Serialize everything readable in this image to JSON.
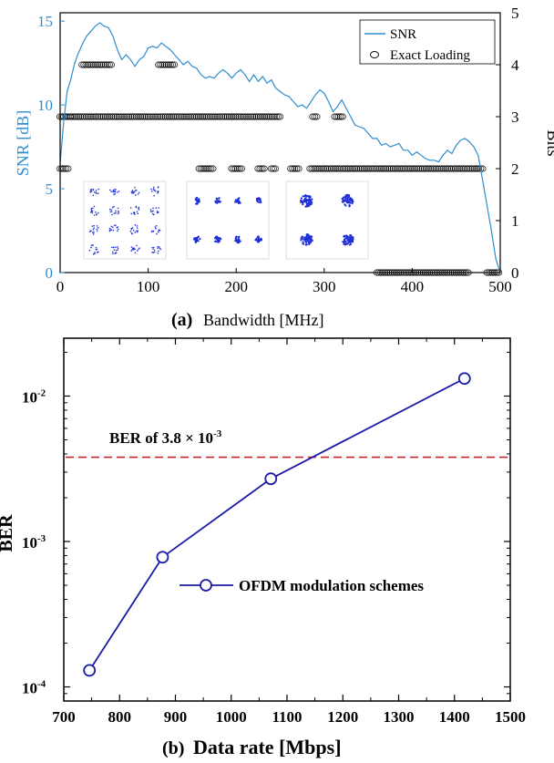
{
  "chart_data": [
    {
      "type": "line",
      "panel_label": "(a)",
      "xlabel": "Bandwidth [MHz]",
      "ylabel": "SNR [dB]",
      "y2label": "Bits",
      "xlim": [
        0,
        500
      ],
      "ylim": [
        0,
        15.5
      ],
      "y2lim": [
        0,
        5
      ],
      "x_ticks": [
        "0",
        "100",
        "200",
        "300",
        "400",
        "500"
      ],
      "y_ticks": [
        "0",
        "5",
        "10",
        "15"
      ],
      "y2_ticks": [
        "0",
        "1",
        "2",
        "3",
        "4",
        "5"
      ],
      "legend": {
        "position": "top-right",
        "entries": [
          "SNR",
          "Exact Loading"
        ]
      },
      "colors": {
        "snr": "#2e8ece",
        "loading": "#000000",
        "axis_left": "#2e8ece",
        "constellation": "#1f2fd6"
      },
      "series": [
        {
          "name": "SNR",
          "axis": "left",
          "x": [
            0,
            4,
            8,
            12,
            16,
            20,
            25,
            30,
            35,
            40,
            45,
            50,
            55,
            60,
            65,
            70,
            75,
            80,
            85,
            90,
            95,
            100,
            105,
            110,
            115,
            120,
            125,
            130,
            135,
            140,
            145,
            150,
            155,
            160,
            165,
            170,
            175,
            180,
            185,
            190,
            195,
            200,
            205,
            210,
            215,
            220,
            225,
            230,
            235,
            240,
            245,
            250,
            255,
            260,
            265,
            270,
            275,
            280,
            285,
            290,
            295,
            300,
            305,
            310,
            315,
            320,
            325,
            330,
            335,
            340,
            345,
            350,
            355,
            360,
            365,
            370,
            375,
            380,
            385,
            390,
            395,
            400,
            405,
            410,
            415,
            420,
            425,
            430,
            435,
            440,
            445,
            450,
            455,
            460,
            465,
            470,
            475,
            480,
            485,
            490,
            495,
            500
          ],
          "y": [
            6.5,
            9.0,
            10.8,
            11.5,
            12.4,
            13.0,
            13.6,
            14.1,
            14.4,
            14.7,
            14.9,
            14.7,
            14.6,
            14.1,
            13.3,
            12.7,
            13.0,
            12.7,
            12.3,
            12.7,
            12.9,
            13.4,
            13.5,
            13.4,
            13.7,
            13.5,
            13.3,
            13.0,
            12.7,
            12.4,
            12.6,
            12.3,
            12.2,
            11.8,
            11.6,
            11.7,
            11.6,
            11.9,
            12.1,
            11.9,
            11.6,
            11.9,
            12.1,
            11.8,
            11.4,
            11.8,
            11.4,
            11.7,
            11.3,
            11.5,
            11.0,
            10.8,
            10.6,
            10.5,
            10.2,
            9.9,
            10.0,
            9.8,
            10.2,
            10.6,
            10.9,
            10.7,
            10.2,
            9.6,
            9.9,
            10.3,
            9.8,
            9.3,
            8.8,
            8.7,
            8.6,
            8.3,
            8.0,
            8.0,
            7.6,
            7.7,
            7.5,
            7.6,
            7.7,
            7.3,
            7.3,
            7.0,
            7.2,
            7.0,
            6.8,
            6.7,
            6.7,
            6.6,
            7.0,
            7.3,
            7.1,
            7.6,
            7.9,
            8.0,
            7.8,
            7.5,
            7.0,
            5.5,
            4.0,
            2.5,
            0.8,
            0.0
          ]
        },
        {
          "name": "Exact Loading",
          "axis": "right",
          "segments": [
            {
              "bits": 2,
              "x_start": 0,
              "x_end": 10
            },
            {
              "bits": 3,
              "x_start": 0,
              "x_end": 12
            },
            {
              "bits": 3,
              "x_start": 12,
              "x_end": 250
            },
            {
              "bits": 4,
              "x_start": 25,
              "x_end": 60
            },
            {
              "bits": 4,
              "x_start": 112,
              "x_end": 130
            },
            {
              "bits": 2,
              "x_start": 158,
              "x_end": 175
            },
            {
              "bits": 2,
              "x_start": 195,
              "x_end": 207
            },
            {
              "bits": 2,
              "x_start": 225,
              "x_end": 232
            },
            {
              "bits": 2,
              "x_start": 240,
              "x_end": 246
            },
            {
              "bits": 2,
              "x_start": 262,
              "x_end": 272
            },
            {
              "bits": 3,
              "x_start": 287,
              "x_end": 293
            },
            {
              "bits": 3,
              "x_start": 312,
              "x_end": 322
            },
            {
              "bits": 2,
              "x_start": 284,
              "x_end": 480
            },
            {
              "bits": 0,
              "x_start": 360,
              "x_end": 465
            },
            {
              "bits": 0,
              "x_start": 485,
              "x_end": 500
            }
          ]
        }
      ],
      "insets": [
        {
          "name": "16-QAM constellation",
          "grid": 4
        },
        {
          "name": "8-point constellation",
          "grid": [
            4,
            2
          ]
        },
        {
          "name": "QPSK constellation",
          "grid": 2
        }
      ]
    },
    {
      "type": "line",
      "panel_label": "(b)",
      "xlabel": "Data rate [Mbps]",
      "ylabel": "BER",
      "xlim": [
        700,
        1500
      ],
      "ylim": [
        8e-05,
        0.025
      ],
      "yscale": "log",
      "x_ticks": [
        700,
        800,
        900,
        1000,
        1100,
        1200,
        1300,
        1400,
        1500
      ],
      "y_ticks": [
        {
          "value": 0.0001,
          "base": "10",
          "exp": "-4"
        },
        {
          "value": 0.001,
          "base": "10",
          "exp": "-3"
        },
        {
          "value": 0.01,
          "base": "10",
          "exp": "-2"
        }
      ],
      "legend": {
        "position": "center-right",
        "entries": [
          "OFDM modulation schemes"
        ]
      },
      "colors": {
        "series": "#1a1aa8",
        "threshold": "#c0272d"
      },
      "series": [
        {
          "name": "OFDM modulation schemes",
          "x": [
            746,
            877,
            1071,
            1418
          ],
          "y": [
            0.00013,
            0.00078,
            0.0027,
            0.0132
          ]
        }
      ],
      "threshold": {
        "value": 0.0038,
        "label_prefix": "BER of 3.8 × 10",
        "label_exp": "-3"
      }
    }
  ]
}
